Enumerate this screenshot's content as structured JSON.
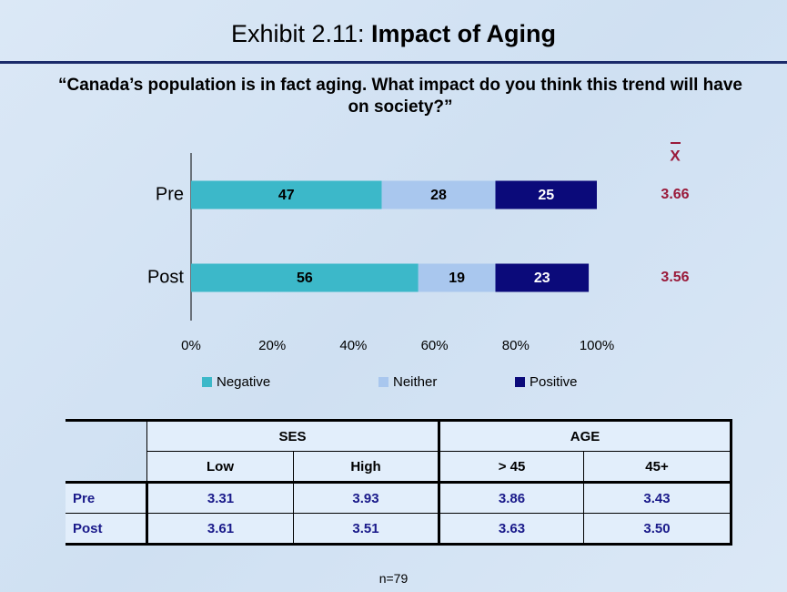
{
  "title_prefix": "Exhibit 2.11:",
  "title_bold": "Impact of Aging",
  "question": "“Canada’s population is in fact aging. What impact do you think this trend will have on society?”",
  "chart_data": {
    "type": "stacked_barh",
    "categories": [
      "Pre",
      "Post"
    ],
    "series": [
      {
        "name": "Negative",
        "color": "#3cb8c9",
        "label_color": "#000000",
        "values": [
          47,
          56
        ]
      },
      {
        "name": "Neither",
        "color": "#a9c7ee",
        "label_color": "#000000",
        "values": [
          28,
          19
        ]
      },
      {
        "name": "Positive",
        "color": "#0b0a7a",
        "label_color": "#ffffff",
        "values": [
          25,
          23
        ]
      }
    ],
    "xlim": [
      0,
      100
    ],
    "xticks": [
      {
        "value": 0,
        "label": "0%"
      },
      {
        "value": 20,
        "label": "20%"
      },
      {
        "value": 40,
        "label": "40%"
      },
      {
        "value": 60,
        "label": "60%"
      },
      {
        "value": 80,
        "label": "80%"
      },
      {
        "value": 100,
        "label": "100%"
      }
    ],
    "legend": "bottom",
    "mean_header": "X",
    "means": [
      3.66,
      3.56
    ]
  },
  "table": {
    "groups": [
      {
        "label": "SES",
        "columns": [
          "Low",
          "High"
        ]
      },
      {
        "label": "AGE",
        "columns": [
          "> 45",
          "45+"
        ]
      }
    ],
    "rows": [
      {
        "label": "Pre",
        "values": [
          "3.31",
          "3.93",
          "3.86",
          "3.43"
        ]
      },
      {
        "label": "Post",
        "values": [
          "3.61",
          "3.51",
          "3.63",
          "3.50"
        ]
      }
    ]
  },
  "footnote": "n=79"
}
